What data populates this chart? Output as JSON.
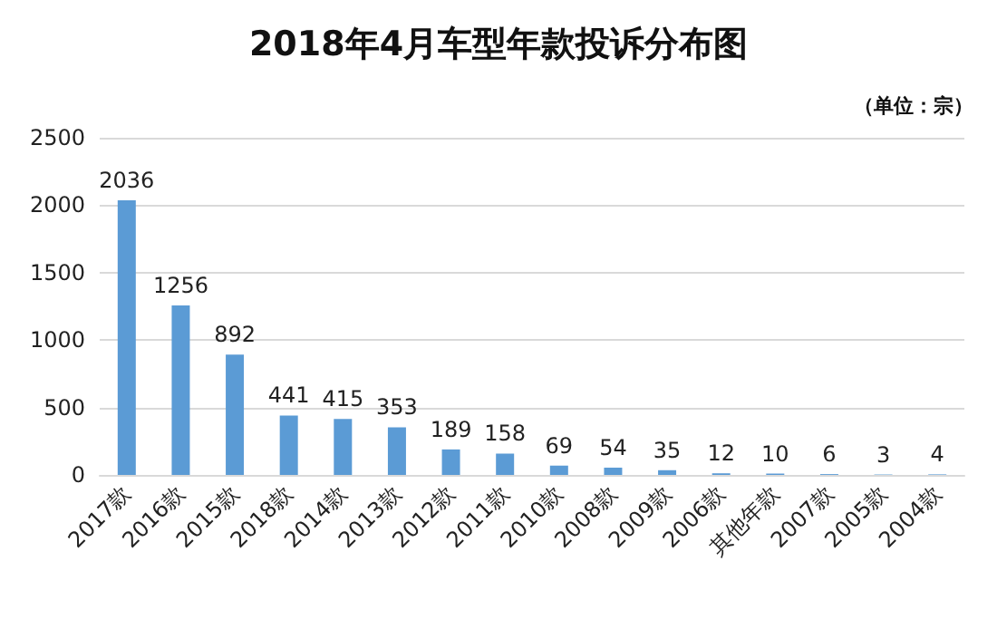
{
  "chart_data": {
    "type": "bar",
    "title": "2018年4月车型年款投诉分布图",
    "subtitle": "（单位：宗）",
    "categories": [
      "2017款",
      "2016款",
      "2015款",
      "2018款",
      "2014款",
      "2013款",
      "2012款",
      "2011款",
      "2010款",
      "2008款",
      "2009款",
      "2006款",
      "其他年款",
      "2007款",
      "2005款",
      "2004款"
    ],
    "values": [
      2036,
      1256,
      892,
      441,
      415,
      353,
      189,
      158,
      69,
      54,
      35,
      12,
      10,
      6,
      3,
      4
    ],
    "color": "#5b9bd5",
    "ylim": [
      0,
      2500
    ],
    "yticks": [
      0,
      500,
      1000,
      1500,
      2000,
      2500
    ],
    "grid": "y",
    "data_labels": true
  }
}
